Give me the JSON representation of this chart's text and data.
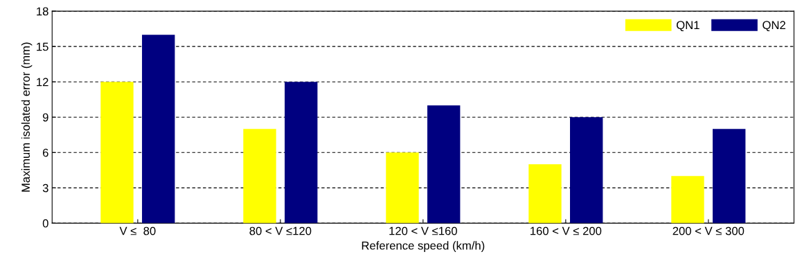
{
  "chart_data": {
    "type": "bar",
    "xlabel": "Reference speed (km/h)",
    "ylabel": "Maximum isolated error (mm)",
    "categories": [
      "V ≤  80",
      "80 < V ≤120",
      "120 < V ≤160",
      "160 < V ≤ 200",
      "200 < V ≤ 300"
    ],
    "series": [
      {
        "name": "QN1",
        "color": "#ffff00",
        "values": [
          12,
          8,
          6,
          5,
          4
        ]
      },
      {
        "name": "QN2",
        "color": "#000080",
        "values": [
          16,
          12,
          10,
          9,
          8
        ]
      }
    ],
    "ylim": [
      0,
      18
    ],
    "yticks": [
      0,
      3,
      6,
      9,
      12,
      15,
      18
    ],
    "grid": "y",
    "legend": "top right"
  }
}
